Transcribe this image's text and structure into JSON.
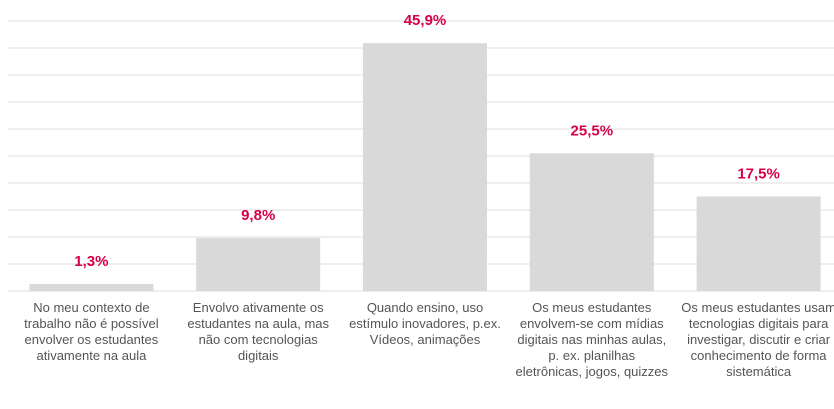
{
  "chart_data": {
    "type": "bar",
    "categories": [
      "No meu contexto de trabalho não é possível envolver os estudantes ativamente na aula",
      "Envolvo ativamente os estudantes na aula, mas não com tecnologias digitais",
      "Quando ensino, uso estímulo inovadores, p.ex. Vídeos, animações",
      "Os meus estudantes envolvem-se com mídias digitais nas minhas aulas, p. ex. planilhas eletrônicas, jogos, quizzes",
      "Os meus estudantes usam tecnologias digitais para investigar, discutir e criar conhecimento de forma sistemática"
    ],
    "values": [
      1.3,
      9.8,
      45.9,
      25.5,
      17.5
    ],
    "value_labels": [
      "1,3%",
      "9,8%",
      "45,9%",
      "25,5%",
      "17,5%"
    ],
    "color": "#d9d9d9",
    "ylim": [
      0,
      50
    ],
    "yticks": [
      0,
      5,
      10,
      15,
      20,
      25,
      30,
      35,
      40,
      45,
      50
    ],
    "grid": true
  }
}
